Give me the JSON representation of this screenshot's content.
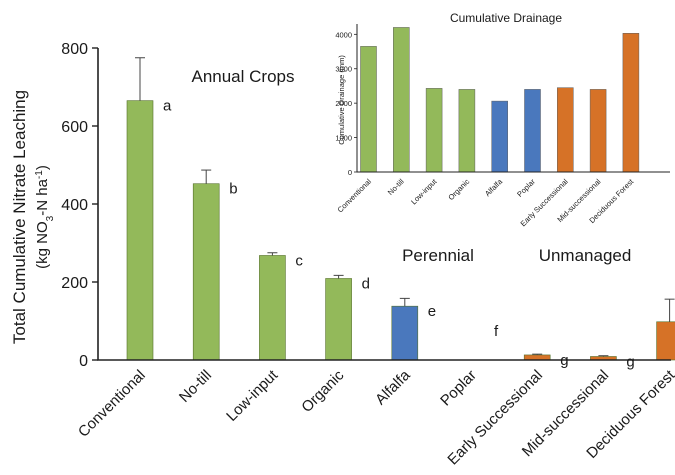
{
  "colors": {
    "annual": "#93b95a",
    "perennial": "#4a78bd",
    "unmanaged": "#d67227"
  },
  "chart_data": [
    {
      "type": "bar",
      "ylabel_line1": "Total Cumulative Nitrate Leaching",
      "ylabel_line2_parts": [
        "(kg NO",
        "3",
        "-N ha",
        "-1",
        ")"
      ],
      "ylim": [
        0,
        800
      ],
      "yticks": [
        "0",
        "200",
        "400",
        "600",
        "800"
      ],
      "categories": [
        "Conventional",
        "No-till",
        "Low-input",
        "Organic",
        "Alfalfa",
        "Poplar",
        "Early Successional",
        "Mid-successional",
        "Deciduous Forest"
      ],
      "values": [
        665,
        452,
        268,
        209,
        138,
        0,
        13,
        9,
        98
      ],
      "error": [
        110,
        35,
        7,
        8,
        20,
        0,
        2,
        2,
        58
      ],
      "letters": [
        "a",
        "b",
        "c",
        "d",
        "e",
        "f",
        "g",
        "g",
        "e"
      ],
      "groups": [
        "annual",
        "annual",
        "annual",
        "annual",
        "perennial",
        "perennial",
        "unmanaged",
        "unmanaged",
        "unmanaged"
      ],
      "group_labels": {
        "annual": "Annual Crops",
        "perennial": "Perennial",
        "unmanaged": "Unmanaged"
      },
      "grid": false
    },
    {
      "type": "bar",
      "title": "Cumulative Drainage",
      "ylabel": "Cumulative Drainage (mm)",
      "ylim": [
        0,
        4000
      ],
      "yticks": [
        "0",
        "1000",
        "2000",
        "3000",
        "4000"
      ],
      "categories": [
        "Conventional",
        "No-till",
        "Low-input",
        "Organic",
        "Alfalfa",
        "Poplar",
        "Early Successional",
        "Mid-successional",
        "Deciduous Forest"
      ],
      "values": [
        3650,
        4200,
        2430,
        2400,
        2060,
        2400,
        2450,
        2400,
        4030
      ],
      "groups": [
        "annual",
        "annual",
        "annual",
        "annual",
        "perennial",
        "perennial",
        "unmanaged",
        "unmanaged",
        "unmanaged"
      ],
      "grid": false
    }
  ]
}
